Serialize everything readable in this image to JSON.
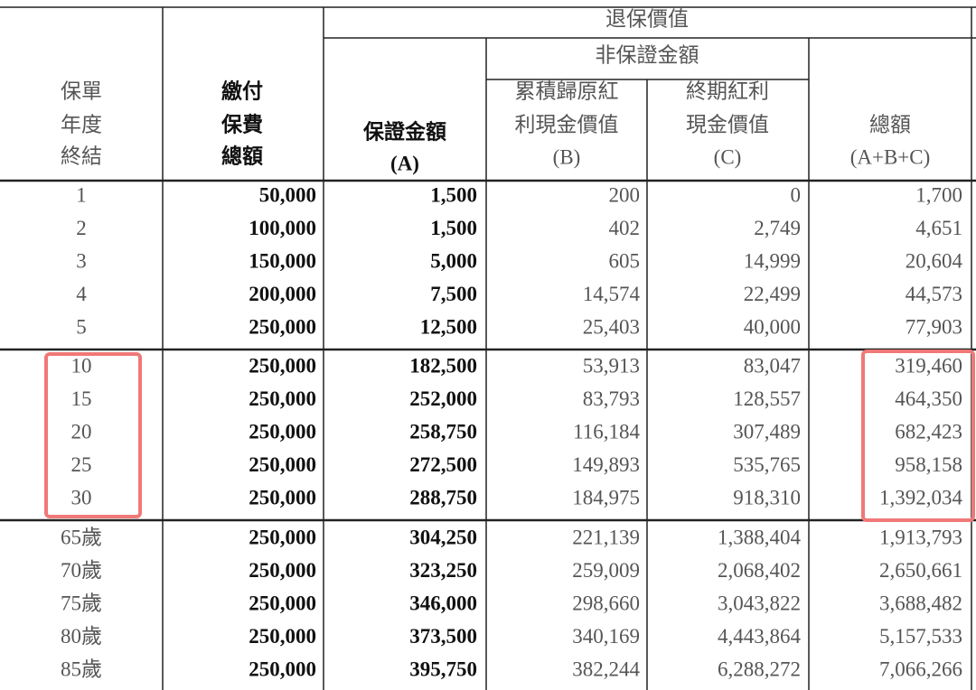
{
  "table": {
    "header": {
      "surrender_value": "退保價值",
      "non_guaranteed": "非保證金額",
      "columns": [
        [
          "保單",
          "年度",
          "終結"
        ],
        [
          "繳付",
          "保費",
          "總額"
        ],
        [
          "保證金額",
          "(A)"
        ],
        [
          "累積歸原紅",
          "利現金價值",
          "(B)"
        ],
        [
          "終期紅利",
          "現金價值",
          "(C)"
        ],
        [
          "總額",
          "(A+B+C)"
        ]
      ]
    },
    "groups": [
      [
        [
          "1",
          "50,000",
          "1,500",
          "200",
          "0",
          "1,700"
        ],
        [
          "2",
          "100,000",
          "1,500",
          "402",
          "2,749",
          "4,651"
        ],
        [
          "3",
          "150,000",
          "5,000",
          "605",
          "14,999",
          "20,604"
        ],
        [
          "4",
          "200,000",
          "7,500",
          "14,574",
          "22,499",
          "44,573"
        ],
        [
          "5",
          "250,000",
          "12,500",
          "25,403",
          "40,000",
          "77,903"
        ]
      ],
      [
        [
          "10",
          "250,000",
          "182,500",
          "53,913",
          "83,047",
          "319,460"
        ],
        [
          "15",
          "250,000",
          "252,000",
          "83,793",
          "128,557",
          "464,350"
        ],
        [
          "20",
          "250,000",
          "258,750",
          "116,184",
          "307,489",
          "682,423"
        ],
        [
          "25",
          "250,000",
          "272,500",
          "149,893",
          "535,765",
          "958,158"
        ],
        [
          "30",
          "250,000",
          "288,750",
          "184,975",
          "918,310",
          "1,392,034"
        ]
      ],
      [
        [
          "65歲",
          "250,000",
          "304,250",
          "221,139",
          "1,388,404",
          "1,913,793"
        ],
        [
          "70歲",
          "250,000",
          "323,250",
          "259,009",
          "2,068,402",
          "2,650,661"
        ],
        [
          "75歲",
          "250,000",
          "346,000",
          "298,660",
          "3,043,822",
          "3,688,482"
        ],
        [
          "80歲",
          "250,000",
          "373,500",
          "340,169",
          "4,443,864",
          "5,157,533"
        ],
        [
          "85歲",
          "250,000",
          "395,750",
          "382,244",
          "6,288,272",
          "7,066,266"
        ]
      ]
    ]
  }
}
